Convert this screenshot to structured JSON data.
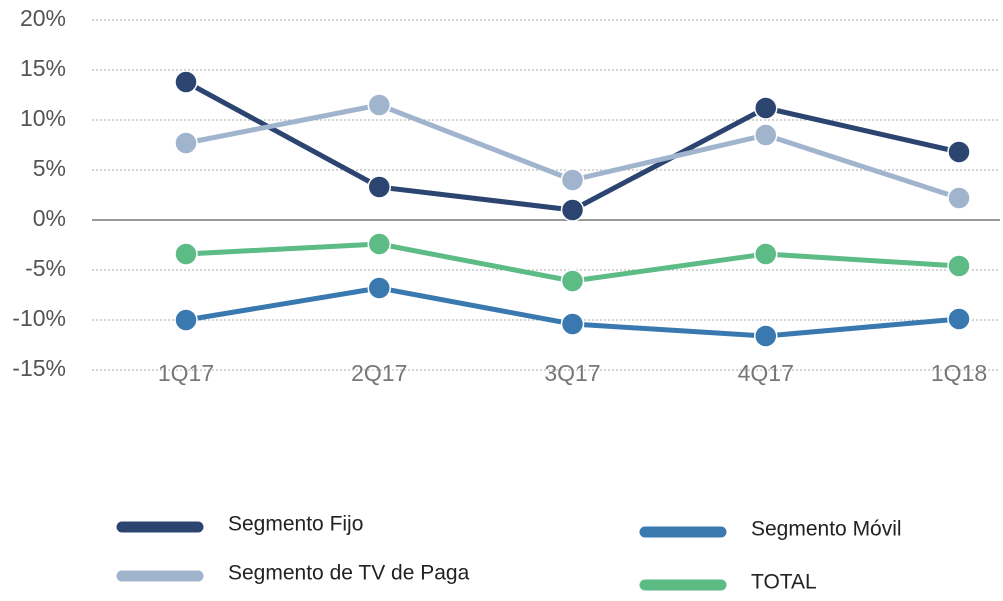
{
  "chart_data": {
    "type": "line",
    "categories": [
      "1Q17",
      "2Q17",
      "3Q17",
      "4Q17",
      "1Q18"
    ],
    "series": [
      {
        "name": "Segmento Fijo",
        "color": "#2b4470",
        "values": [
          13.8,
          3.3,
          1.0,
          11.2,
          6.8
        ]
      },
      {
        "name": "Segmento de TV de Paga",
        "color": "#a0b4cd",
        "values": [
          7.7,
          11.5,
          4.0,
          8.5,
          2.2
        ]
      },
      {
        "name": "Segmento Móvil",
        "color": "#3a78b0",
        "values": [
          -10.0,
          -6.8,
          -10.4,
          -11.6,
          -9.9
        ]
      },
      {
        "name": "TOTAL",
        "color": "#5dbb86",
        "values": [
          -3.4,
          -2.4,
          -6.1,
          -3.4,
          -4.6
        ]
      }
    ],
    "ylim": [
      -15,
      20
    ],
    "yticks": [
      {
        "value": -15,
        "label": "-15%"
      },
      {
        "value": -10,
        "label": "-10%"
      },
      {
        "value": -5,
        "label": "-5%"
      },
      {
        "value": 0,
        "label": "0%"
      },
      {
        "value": 5,
        "label": "5%"
      },
      {
        "value": 10,
        "label": "10%"
      },
      {
        "value": 15,
        "label": "15%"
      },
      {
        "value": 20,
        "label": "20%"
      }
    ],
    "grid": true
  }
}
